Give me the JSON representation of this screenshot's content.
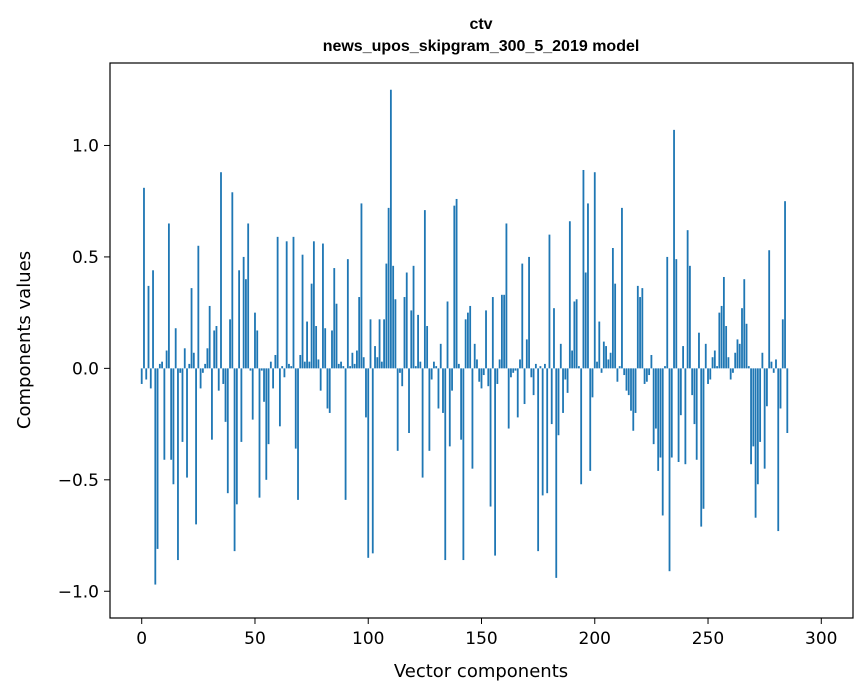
{
  "chart_data": {
    "type": "bar",
    "title_lines": [
      "ctv",
      "news_upos_skipgram_300_5_2019 model"
    ],
    "xlabel": "Vector components",
    "ylabel": "Components values",
    "xlim": [
      -14,
      314
    ],
    "ylim": [
      -1.12,
      1.37
    ],
    "xticks": [
      0,
      50,
      100,
      150,
      200,
      250,
      300
    ],
    "yticks": [
      -1.0,
      -0.5,
      0.0,
      0.5,
      1.0
    ],
    "ytick_labels": [
      "−1.0",
      "−0.5",
      "0.0",
      "0.5",
      "1.0"
    ],
    "bar_color": "#1f77b4",
    "values": [
      -0.07,
      0.81,
      -0.05,
      0.37,
      -0.09,
      0.44,
      -0.97,
      -0.81,
      0.02,
      0.03,
      -0.41,
      0.08,
      0.65,
      -0.41,
      -0.52,
      0.18,
      -0.86,
      -0.02,
      -0.33,
      0.09,
      -0.49,
      0.02,
      0.36,
      0.07,
      -0.7,
      0.55,
      -0.09,
      -0.02,
      0.02,
      0.09,
      0.28,
      -0.32,
      0.17,
      0.19,
      -0.1,
      0.88,
      -0.07,
      -0.24,
      -0.56,
      0.22,
      0.79,
      -0.82,
      -0.61,
      0.44,
      -0.33,
      0.5,
      0.4,
      0.65,
      -0.01,
      -0.23,
      0.25,
      0.17,
      -0.58,
      -0.01,
      -0.15,
      -0.5,
      -0.34,
      0.03,
      -0.09,
      0.06,
      0.59,
      -0.26,
      0.01,
      -0.04,
      0.57,
      0.02,
      0.01,
      0.59,
      -0.36,
      -0.59,
      0.06,
      0.51,
      0.03,
      0.21,
      0.03,
      0.38,
      0.57,
      0.19,
      0.04,
      -0.1,
      0.56,
      0.18,
      -0.18,
      -0.2,
      0.17,
      0.45,
      0.29,
      0.02,
      0.03,
      0.01,
      -0.59,
      0.49,
      0.01,
      0.07,
      0.02,
      0.08,
      0.32,
      0.74,
      0.05,
      -0.22,
      -0.85,
      0.22,
      -0.83,
      0.1,
      0.05,
      0.22,
      0.03,
      0.22,
      0.47,
      0.72,
      1.25,
      0.46,
      0.31,
      -0.37,
      -0.02,
      -0.08,
      0.32,
      0.43,
      -0.29,
      0.26,
      0.46,
      0.01,
      0.24,
      0.03,
      -0.49,
      0.71,
      0.19,
      -0.37,
      -0.05,
      0.03,
      0.01,
      -0.18,
      0.11,
      -0.2,
      -0.86,
      0.3,
      -0.35,
      -0.1,
      0.73,
      0.76,
      0.02,
      -0.32,
      -0.86,
      0.22,
      0.25,
      0.28,
      -0.45,
      0.11,
      0.04,
      -0.06,
      -0.09,
      -0.03,
      0.26,
      -0.08,
      -0.62,
      0.32,
      -0.84,
      -0.07,
      0.04,
      0.33,
      0.33,
      0.65,
      -0.27,
      -0.04,
      -0.02,
      -0.01,
      -0.22,
      0.04,
      0.47,
      -0.16,
      0.13,
      0.5,
      -0.04,
      -0.12,
      0.02,
      -0.82,
      0.01,
      -0.57,
      0.02,
      -0.56,
      0.6,
      -0.25,
      0.27,
      -0.94,
      -0.3,
      0.11,
      -0.2,
      -0.05,
      -0.11,
      0.66,
      0.08,
      0.3,
      0.31,
      0.01,
      -0.52,
      0.89,
      0.43,
      0.74,
      -0.46,
      -0.13,
      0.88,
      0.03,
      0.21,
      -0.02,
      0.12,
      0.1,
      0.04,
      0.07,
      0.54,
      0.38,
      -0.06,
      0.01,
      0.72,
      -0.03,
      -0.1,
      -0.12,
      -0.19,
      -0.28,
      -0.2,
      0.37,
      0.32,
      0.36,
      -0.07,
      -0.06,
      -0.03,
      0.06,
      -0.34,
      -0.27,
      -0.46,
      -0.4,
      -0.66,
      0.01,
      0.5,
      -0.91,
      -0.4,
      1.07,
      0.49,
      -0.42,
      -0.21,
      0.1,
      -0.43,
      0.62,
      0.46,
      -0.12,
      -0.25,
      -0.41,
      0.16,
      -0.71,
      -0.63,
      0.11,
      -0.07,
      -0.05,
      0.05,
      0.08,
      0.01,
      0.25,
      0.28,
      0.41,
      0.19,
      0.05,
      -0.05,
      -0.02,
      0.07,
      0.13,
      0.11,
      0.27,
      0.4,
      0.2,
      0.01,
      -0.43,
      -0.35,
      -0.67,
      -0.52,
      -0.33,
      0.07,
      -0.45,
      -0.17,
      0.53,
      0.03,
      -0.02,
      0.04,
      -0.73,
      -0.18,
      0.22,
      0.75,
      -0.29
    ],
    "grid": false
  }
}
